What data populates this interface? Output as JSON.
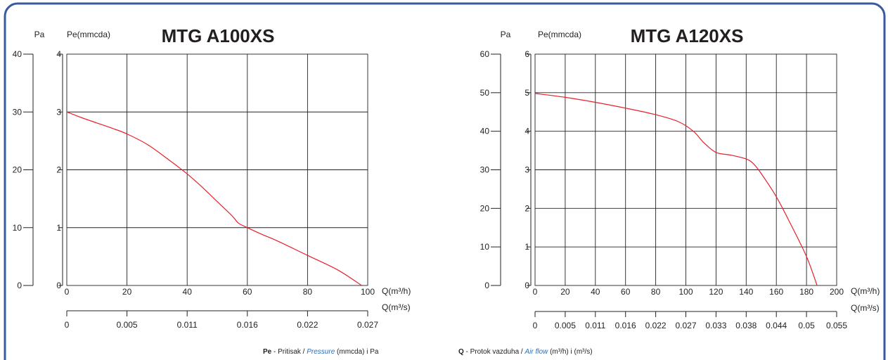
{
  "legend": {
    "pe_key": "Pe",
    "pe_text1": " - Pritisak / ",
    "pe_italic": "Pressure",
    "pe_text2": " (mmcda) i Pa",
    "q_key": "Q",
    "q_text1": " - Protok vazduha / ",
    "q_italic": "Air flow",
    "q_text2": " (m³/h) i (m³/s)"
  },
  "chart_data": [
    {
      "type": "line",
      "title": "MTG A100XS",
      "pa_label": "Pa",
      "pe_label": "Pe(mmcda)",
      "x_label": "Q(m³/h)",
      "x2_label": "Q(m³/s)",
      "xlim": [
        0,
        100
      ],
      "ylim": [
        0,
        4
      ],
      "pa_lim": [
        0,
        40
      ],
      "x_ticks": [
        "0",
        "20",
        "40",
        "60",
        "80",
        "100"
      ],
      "x2_ticks": [
        "0",
        "0.005",
        "0.011",
        "0.016",
        "0.022",
        "0.027"
      ],
      "pe_ticks": [
        "0",
        "1",
        "2",
        "3",
        "4"
      ],
      "pa_ticks": [
        "0",
        "10",
        "20",
        "30",
        "40"
      ],
      "grid": true,
      "series": [
        {
          "color": "#e8202a",
          "x": [
            0,
            5,
            10,
            15,
            20,
            27,
            35,
            40,
            45,
            50,
            55,
            57,
            60,
            65,
            70,
            80,
            90,
            98
          ],
          "y": [
            3.0,
            2.9,
            2.81,
            2.72,
            2.62,
            2.43,
            2.13,
            1.93,
            1.7,
            1.45,
            1.2,
            1.08,
            1.0,
            0.88,
            0.77,
            0.52,
            0.27,
            0.0
          ]
        }
      ]
    },
    {
      "type": "line",
      "title": "MTG A120XS",
      "pa_label": "Pa",
      "pe_label": "Pe(mmcda)",
      "x_label": "Q(m³/h)",
      "x2_label": "Q(m³/s)",
      "xlim": [
        0,
        200
      ],
      "ylim": [
        0,
        6
      ],
      "pa_lim": [
        0,
        60
      ],
      "x_ticks": [
        "0",
        "20",
        "40",
        "60",
        "80",
        "100",
        "120",
        "140",
        "160",
        "180",
        "200"
      ],
      "x2_ticks": [
        "0",
        "0.005",
        "0.011",
        "0.016",
        "0.022",
        "0.027",
        "0.033",
        "0.038",
        "0.044",
        "0.05",
        "0.055"
      ],
      "pe_ticks": [
        "0",
        "1",
        "2",
        "3",
        "4",
        "5",
        "6"
      ],
      "pa_ticks": [
        "0",
        "10",
        "20",
        "30",
        "40",
        "50",
        "60"
      ],
      "grid": true,
      "series": [
        {
          "color": "#e8202a",
          "x": [
            0,
            20,
            40,
            60,
            80,
            95,
            105,
            112,
            120,
            130,
            140,
            145,
            150,
            160,
            170,
            180,
            187
          ],
          "y": [
            4.98,
            4.88,
            4.75,
            4.6,
            4.43,
            4.25,
            4.0,
            3.7,
            3.45,
            3.38,
            3.28,
            3.15,
            2.9,
            2.3,
            1.55,
            0.75,
            0.0
          ]
        }
      ]
    }
  ]
}
